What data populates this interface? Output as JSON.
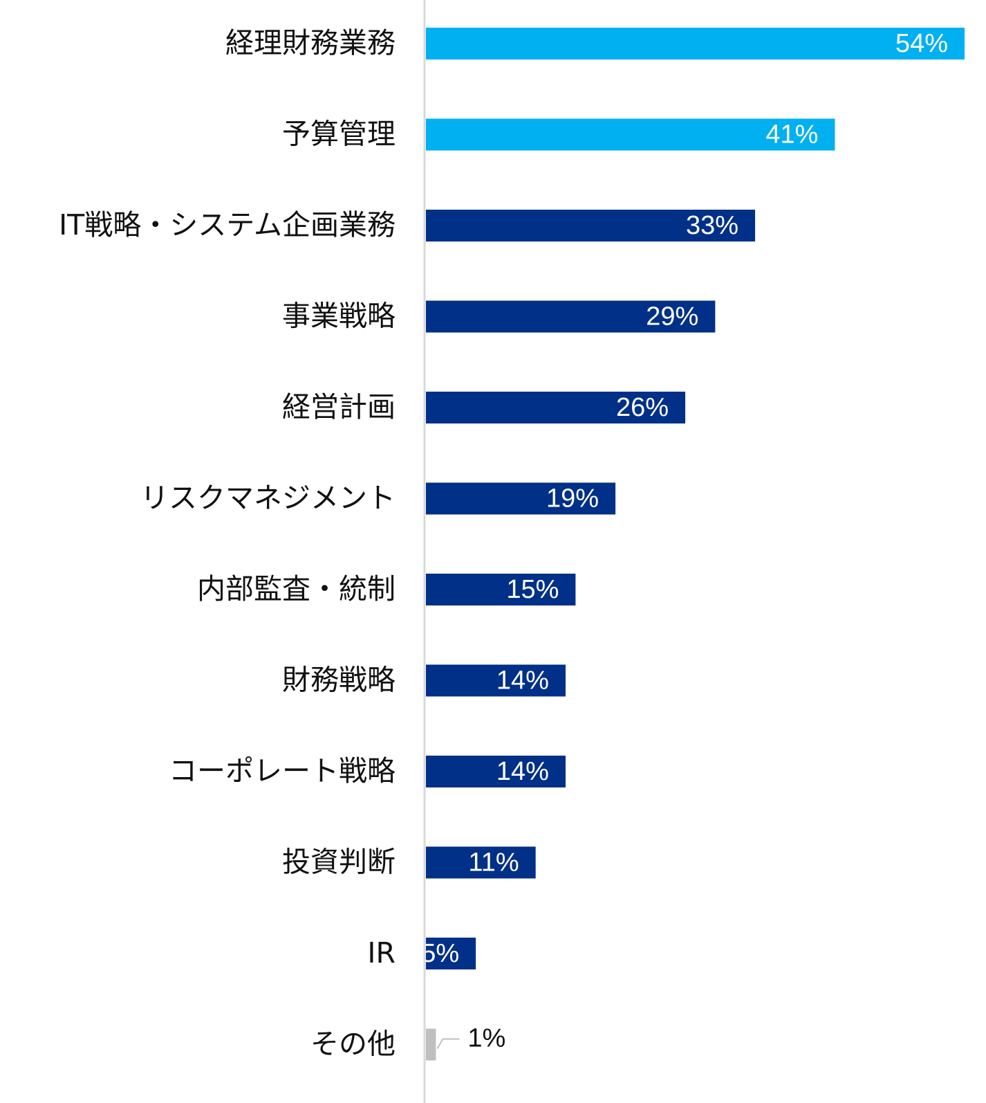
{
  "chart_data": {
    "type": "bar",
    "orientation": "horizontal",
    "categories": [
      "経理財務業務",
      "予算管理",
      "IT戦略・システム企画業務",
      "事業戦略",
      "経営計画",
      "リスクマネジメント",
      "内部監査・統制",
      "財務戦略",
      "コーポレート戦略",
      "投資判断",
      "IR",
      "その他"
    ],
    "values": [
      54,
      41,
      33,
      29,
      26,
      19,
      15,
      14,
      14,
      11,
      5,
      1
    ],
    "value_labels": [
      "54%",
      "41%",
      "33%",
      "29%",
      "26%",
      "19%",
      "15%",
      "14%",
      "14%",
      "11%",
      "5%",
      "1%"
    ],
    "colors": [
      "#00b0f0",
      "#00b0f0",
      "#003087",
      "#003087",
      "#003087",
      "#003087",
      "#003087",
      "#003087",
      "#003087",
      "#003087",
      "#003087",
      "#bfbfbf"
    ],
    "xlim": [
      0,
      54
    ]
  }
}
